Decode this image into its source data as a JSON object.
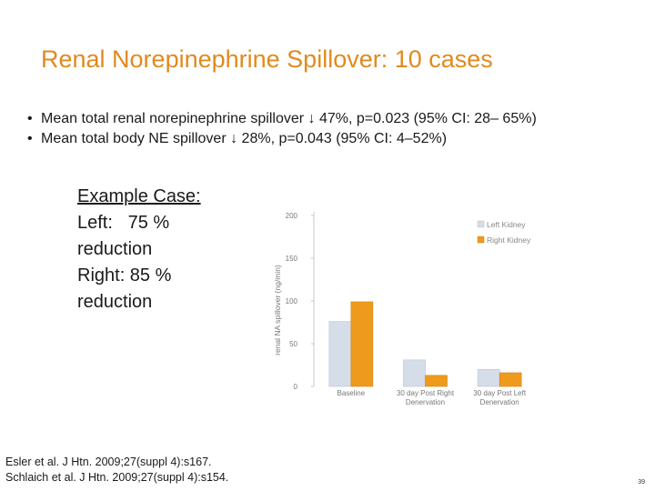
{
  "slide": {
    "title": "Renal Norepinephrine Spillover: 10 cases",
    "bullets": [
      "Mean total renal norepinephrine spillover ↓ 47%, p=0.023 (95% CI: 28– 65%)",
      "Mean total body NE spillover ↓ 28%, p=0.043 (95% CI: 4–52%)"
    ],
    "example": {
      "heading": "Example Case:",
      "left_line": "Left:   75 %",
      "left_suffix": "reduction",
      "right_line": "Right: 85 %",
      "right_suffix": "reduction"
    },
    "references": [
      "Esler et al.  J Htn. 2009;27(suppl 4):s167.",
      "Schlaich et al. J Htn. 2009;27(suppl 4):s154."
    ],
    "page_number": "39"
  },
  "chart_data": {
    "type": "bar",
    "title": "",
    "xlabel": "",
    "ylabel": "renal NA spillover (ng/min)",
    "ylim": [
      0,
      200
    ],
    "yticks": [
      0,
      50,
      100,
      150,
      200
    ],
    "categories": [
      [
        "Baseline"
      ],
      [
        "30 day Post Right",
        "Denervation"
      ],
      [
        "30 day Post Left",
        "Denervation"
      ]
    ],
    "series": [
      {
        "name": "Left Kidney",
        "color": "#d5dde8",
        "values": [
          76,
          31,
          20
        ]
      },
      {
        "name": "Right Kidney",
        "color": "#ee9a1c",
        "values": [
          99,
          13,
          16
        ]
      }
    ],
    "legend_position": "top-right",
    "grid": false
  }
}
